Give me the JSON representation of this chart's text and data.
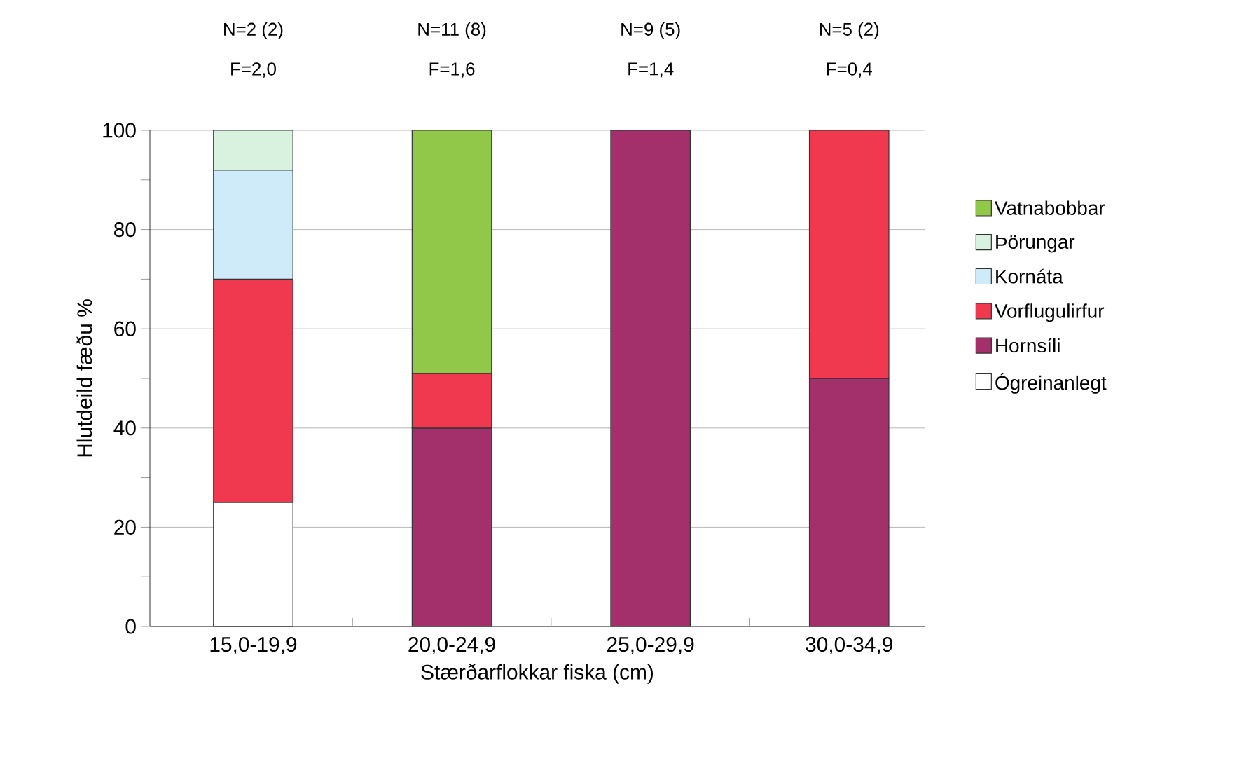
{
  "chart_data": {
    "type": "bar",
    "stacked": true,
    "categories": [
      "15,0-19,9",
      "20,0-24,9",
      "25,0-29,9",
      "30,0-34,9"
    ],
    "series": [
      {
        "name": "Ógreinanlegt",
        "color": "#ffffff",
        "values": [
          25,
          null,
          null,
          null
        ]
      },
      {
        "name": "Hornsíli",
        "color": "#a3306b",
        "values": [
          null,
          40,
          100,
          50
        ]
      },
      {
        "name": "Vorflugulirfur",
        "color": "#f0384f",
        "values": [
          45,
          11,
          null,
          50
        ]
      },
      {
        "name": "Kornáta",
        "color": "#cfeaf8",
        "values": [
          22,
          null,
          null,
          null
        ]
      },
      {
        "name": "Þörungar",
        "color": "#d9f2e0",
        "values": [
          8,
          null,
          null,
          null
        ]
      },
      {
        "name": "Vatnabobbar",
        "color": "#92c84a",
        "values": [
          null,
          49,
          null,
          null
        ]
      }
    ],
    "ylim": [
      0,
      100
    ],
    "yticks": [
      0,
      20,
      40,
      60,
      80,
      100
    ],
    "grid": "y",
    "legend": "right",
    "ylabel": "Hlutdeild fæðu %",
    "xlabel": "Stærðarflokkar fiska (cm)",
    "annotations": [
      "N=2 (2)",
      "F=2,0",
      "N=11 (8)",
      "F=1,6",
      "N=9 (5)",
      "F=1,4",
      "N=5 (2)",
      "F=0,4"
    ]
  }
}
